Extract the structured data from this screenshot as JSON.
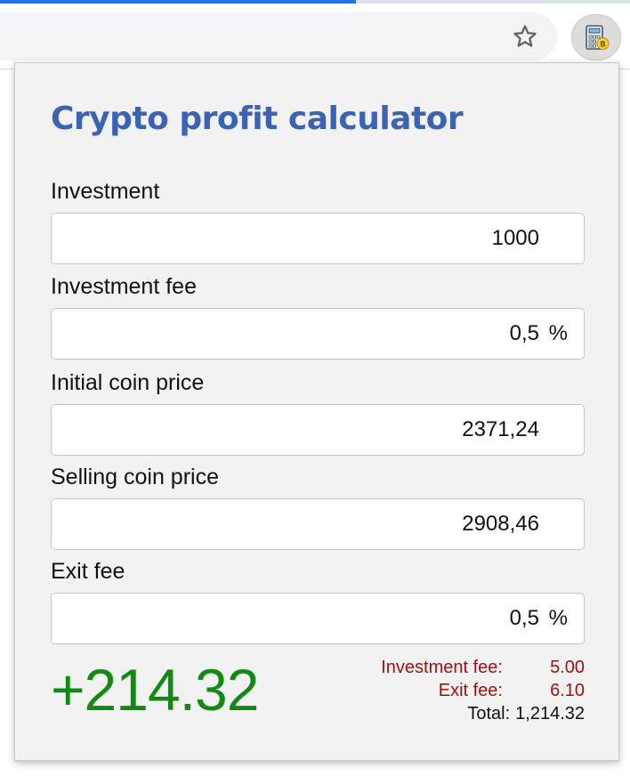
{
  "browser": {
    "star_icon": "star-outline-icon",
    "extension_icon": "calculator-bitcoin-icon",
    "accent": "#1a73e8"
  },
  "popup": {
    "title": "Crypto profit calculator",
    "title_color": "#3b63b5",
    "fields": [
      {
        "label": "Investment",
        "value": "1000",
        "unit": ""
      },
      {
        "label": "Investment fee",
        "value": "0,5",
        "unit": "%"
      },
      {
        "label": "Initial coin price",
        "value": "2371,24",
        "unit": ""
      },
      {
        "label": "Selling coin price",
        "value": "2908,46",
        "unit": ""
      },
      {
        "label": "Exit fee",
        "value": "0,5",
        "unit": "%"
      }
    ],
    "result": "+214.32",
    "result_color": "#128a12",
    "summary": {
      "investment_fee_label": "Investment fee:",
      "investment_fee_value": "5.00",
      "exit_fee_label": "Exit fee:",
      "exit_fee_value": "6.10",
      "total_label": "Total:",
      "total_value": "1,214.32",
      "fee_color": "#9b1010"
    }
  }
}
